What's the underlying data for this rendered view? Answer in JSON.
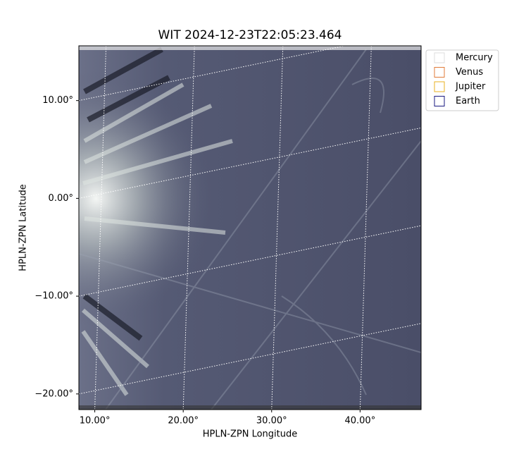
{
  "chart_data": {
    "type": "image",
    "title": "WIT 2024-12-23T22:05:23.464",
    "x_label": "HPLN-ZPN Longitude",
    "y_label": "HPLN-ZPN Latitude",
    "xlim": [
      8.2,
      46.9
    ],
    "ylim": [
      -21.6,
      15.6
    ],
    "xticks": [
      {
        "value": 10,
        "label": "10.00°"
      },
      {
        "value": 20,
        "label": "20.00°"
      },
      {
        "value": 30,
        "label": "30.00°"
      },
      {
        "value": 40,
        "label": "40.00°"
      }
    ],
    "yticks": [
      {
        "value": 10,
        "label": "10.00°"
      },
      {
        "value": 0,
        "label": "0.00°"
      },
      {
        "value": -10,
        "label": "−10.00°"
      },
      {
        "value": -20,
        "label": "−20.00°"
      }
    ],
    "grid": true,
    "legend": "upper right",
    "series": [
      {
        "name": "Mercury",
        "color": "#dddddd"
      },
      {
        "name": "Venus",
        "color": "#e07b39"
      },
      {
        "name": "Jupiter",
        "color": "#e8b020"
      },
      {
        "name": "Earth",
        "color": "#1a1a80"
      }
    ]
  }
}
